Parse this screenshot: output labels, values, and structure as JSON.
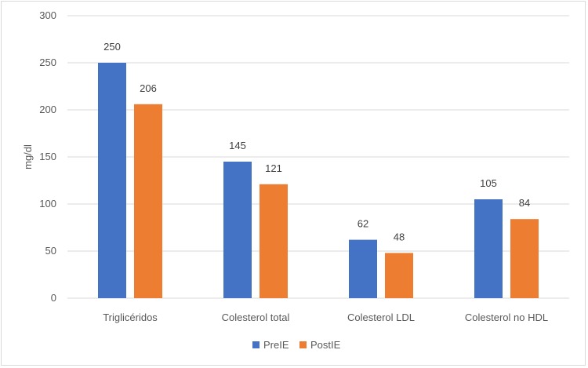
{
  "chart_data": {
    "type": "bar",
    "title": "",
    "xlabel": "",
    "ylabel": "mg/dl",
    "ylim": [
      0,
      300
    ],
    "yticks": [
      0,
      50,
      100,
      150,
      200,
      250,
      300
    ],
    "grid": true,
    "legend_position": "bottom",
    "categories": [
      "Triglicéridos",
      "Colesterol total",
      "Colesterol LDL",
      "Colesterol no HDL"
    ],
    "series": [
      {
        "name": "PreIE",
        "color": "#4472C4",
        "values": [
          250,
          145,
          62,
          105
        ]
      },
      {
        "name": "PostIE",
        "color": "#ED7D31",
        "values": [
          206,
          121,
          48,
          84
        ]
      }
    ]
  }
}
